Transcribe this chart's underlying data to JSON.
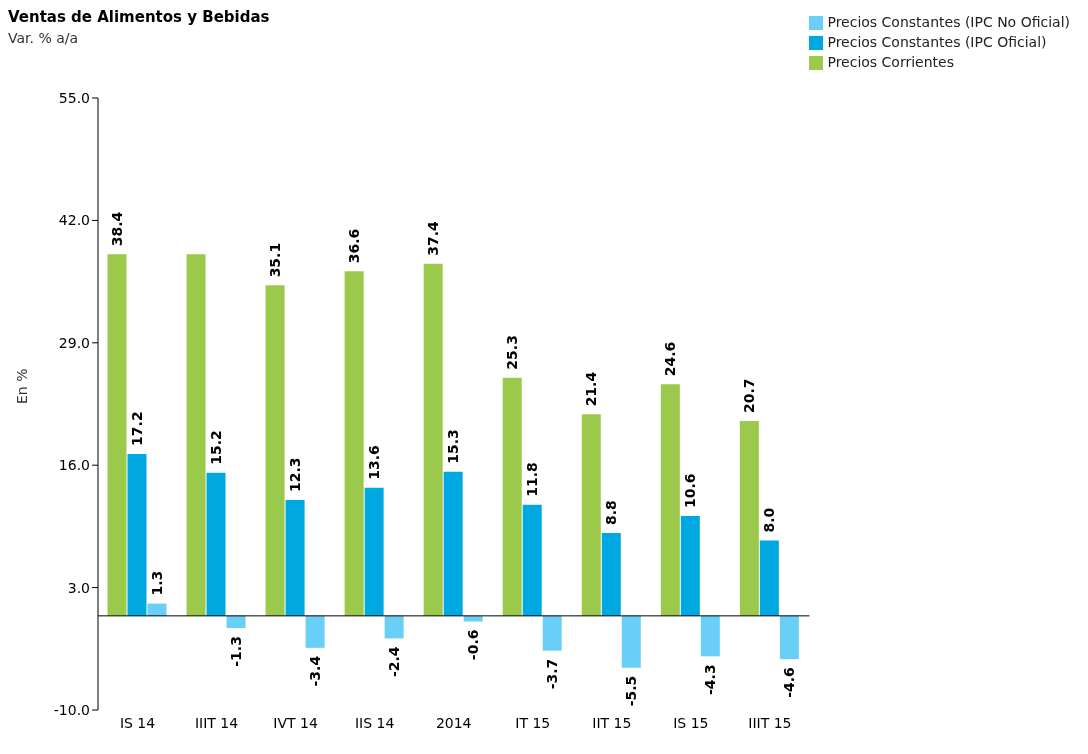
{
  "chart_data": {
    "type": "bar",
    "title": "Ventas de Alimentos y Bebidas",
    "subtitle": "Var. % a/a",
    "ylabel": "En %",
    "categories": [
      "IS 14",
      "IIIT 14",
      "IVT 14",
      "IIS 14",
      "2014",
      "IT 15",
      "IIT 15",
      "IS 15",
      "IIIT 15"
    ],
    "series": [
      {
        "name": "Precios Corrientes",
        "color": "#9bc94b",
        "values": [
          38.4,
          38.4,
          35.1,
          36.6,
          37.4,
          25.3,
          21.4,
          24.6,
          20.7
        ],
        "value_labels": [
          "38.4",
          null,
          "35.1",
          "36.6",
          "37.4",
          "25.3",
          "21.4",
          "24.6",
          "20.7"
        ]
      },
      {
        "name": "Precios Constantes (IPC Oficial)",
        "color": "#00a8e1",
        "values": [
          17.2,
          15.2,
          12.3,
          13.6,
          15.3,
          11.8,
          8.8,
          10.6,
          8.0
        ],
        "value_labels": [
          "17.2",
          "15.2",
          "12.3",
          "13.6",
          "15.3",
          "11.8",
          "8.8",
          "10.6",
          "8.0"
        ]
      },
      {
        "name": "Precios Constantes (IPC No Oficial)",
        "color": "#6acff6",
        "values": [
          1.3,
          -1.3,
          -3.4,
          -2.4,
          -0.6,
          -3.7,
          -5.5,
          -4.3,
          -4.6
        ],
        "value_labels": [
          "1.3",
          "-1.3",
          "-3.4",
          "-2.4",
          "-0.6",
          "-3.7",
          "-5.5",
          "-4.3",
          "-4.6"
        ]
      }
    ],
    "ylim": [
      -10,
      55
    ],
    "yticks": [
      {
        "value": 55,
        "label": "55.0"
      },
      {
        "value": 42,
        "label": "42.0"
      },
      {
        "value": 29,
        "label": "29.0"
      },
      {
        "value": 16,
        "label": "16.0"
      },
      {
        "value": 3,
        "label": "3.0"
      },
      {
        "value": -10,
        "label": "-10.0"
      }
    ],
    "grid": false,
    "legend": "top right"
  }
}
